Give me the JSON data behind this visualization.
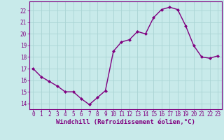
{
  "x": [
    0,
    1,
    2,
    3,
    4,
    5,
    6,
    7,
    8,
    9,
    10,
    11,
    12,
    13,
    14,
    15,
    16,
    17,
    18,
    19,
    20,
    21,
    22,
    23
  ],
  "y": [
    17.0,
    16.3,
    15.9,
    15.5,
    15.0,
    15.0,
    14.4,
    13.9,
    14.5,
    15.1,
    18.5,
    19.3,
    19.5,
    20.2,
    20.0,
    21.4,
    22.1,
    22.3,
    22.1,
    20.7,
    19.0,
    18.0,
    17.9,
    18.1
  ],
  "line_color": "#800080",
  "marker": "D",
  "marker_size": 2,
  "bg_color": "#c8eaea",
  "grid_color": "#aad4d4",
  "xlabel": "Windchill (Refroidissement éolien,°C)",
  "ylim": [
    13.5,
    22.8
  ],
  "xlim": [
    -0.5,
    23.5
  ],
  "yticks": [
    14,
    15,
    16,
    17,
    18,
    19,
    20,
    21,
    22
  ],
  "xticks": [
    0,
    1,
    2,
    3,
    4,
    5,
    6,
    7,
    8,
    9,
    10,
    11,
    12,
    13,
    14,
    15,
    16,
    17,
    18,
    19,
    20,
    21,
    22,
    23
  ],
  "tick_fontsize": 5.5,
  "xlabel_fontsize": 6.5,
  "line_width": 1.0,
  "fig_width": 3.2,
  "fig_height": 2.0,
  "dpi": 100
}
